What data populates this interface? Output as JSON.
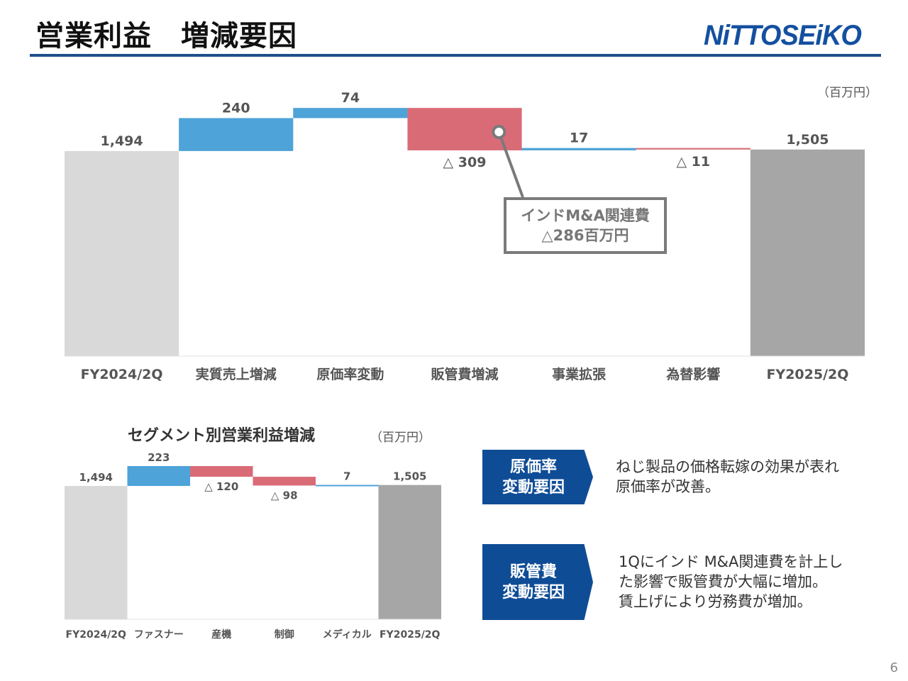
{
  "header": {
    "title": "営業利益　増減要因",
    "logo_text": "NiTTOSEiKO",
    "accent_color": "#1f4e8c"
  },
  "colors": {
    "base": "#d9d9d9",
    "end": "#a6a6a6",
    "increase": "#4ea3d8",
    "decrease": "#d96b77"
  },
  "chart_data": [
    {
      "type": "waterfall",
      "unit": "（百万円）",
      "categories": [
        "FY2024/2Q",
        "実質売上増減",
        "原価率変動",
        "販管費増減",
        "事業拡張",
        "為替影響",
        "FY2025/2Q"
      ],
      "values": [
        1494,
        240,
        74,
        -309,
        17,
        -11,
        1505
      ],
      "labels": [
        "1,494",
        "240",
        "74",
        "△ 309",
        "17",
        "△ 11",
        "1,505"
      ],
      "kinds": [
        "total",
        "delta",
        "delta",
        "delta",
        "delta",
        "delta",
        "total"
      ]
    },
    {
      "type": "waterfall",
      "title": "セグメント別営業利益増減",
      "unit": "（百万円）",
      "categories": [
        "FY2024/2Q",
        "ファスナー",
        "産機",
        "制御",
        "メディカル",
        "FY2025/2Q"
      ],
      "values": [
        1494,
        223,
        -120,
        -98,
        7,
        1505
      ],
      "labels": [
        "1,494",
        "223",
        "△ 120",
        "△ 98",
        "7",
        "1,505"
      ],
      "kinds": [
        "total",
        "delta",
        "delta",
        "delta",
        "delta",
        "total"
      ]
    }
  ],
  "callout": {
    "line1": "インドM&A関連費",
    "line2": "△286百万円"
  },
  "factors": [
    {
      "tag_line1": "原価率",
      "tag_line2": "変動要因",
      "text_lines": [
        "ねじ製品の価格転嫁の効果が表れ",
        "原価率が改善。"
      ]
    },
    {
      "tag_line1": "販管費",
      "tag_line2": "変動要因",
      "text_lines": [
        "1Qにインド M&A関連費を計上し",
        "た影響で販管費が大幅に増加。",
        "賃上げにより労務費が増加。"
      ]
    }
  ],
  "page_number": "6"
}
